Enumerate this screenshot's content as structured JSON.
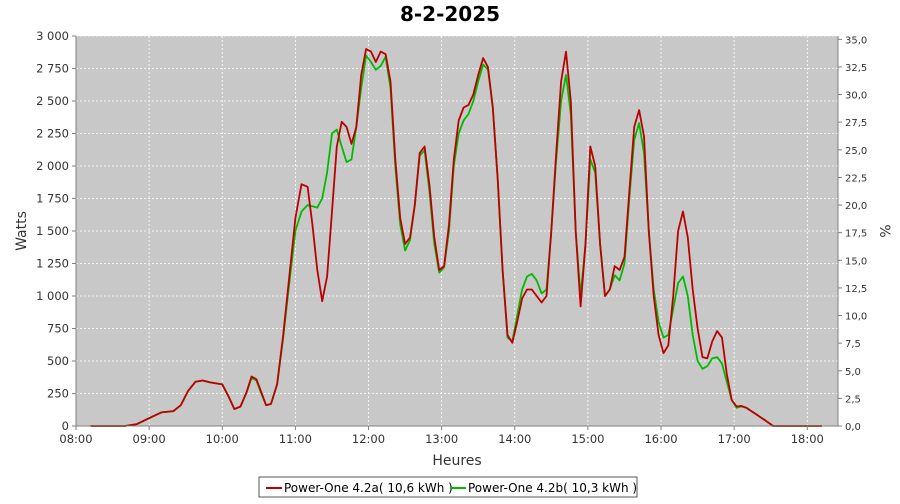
{
  "chart_data": {
    "type": "line",
    "title": "8-2-2025",
    "xlabel": "Heures",
    "ylabel": "Watts",
    "y2label": "%",
    "x_range_hours": [
      8.0,
      18.42
    ],
    "xticks": [
      "08:00",
      "09:00",
      "10:00",
      "11:00",
      "12:00",
      "13:00",
      "14:00",
      "15:00",
      "16:00",
      "17:00",
      "18:00"
    ],
    "ylim": [
      0,
      3000
    ],
    "yticks": [
      "0",
      "250",
      "500",
      "750",
      "1 000",
      "1 250",
      "1 500",
      "1 750",
      "2 000",
      "2 250",
      "2 500",
      "2 750",
      "3 000"
    ],
    "y2lim": [
      0,
      35.3
    ],
    "y2ticks": [
      "0,0",
      "2,5",
      "5,0",
      "7,5",
      "10,0",
      "12,5",
      "15,0",
      "17,5",
      "20,0",
      "22,5",
      "25,0",
      "27,5",
      "30,0",
      "32,5",
      "35,0"
    ],
    "grid": true,
    "legend_position": "bottom",
    "series": [
      {
        "name": "Power-One 4.2a( 10,6 kWh )",
        "color": "#bb0000",
        "points": [
          [
            "08:12",
            0
          ],
          [
            "08:40",
            0
          ],
          [
            "08:50",
            15
          ],
          [
            "09:00",
            60
          ],
          [
            "09:10",
            105
          ],
          [
            "09:20",
            115
          ],
          [
            "09:26",
            160
          ],
          [
            "09:32",
            270
          ],
          [
            "09:38",
            340
          ],
          [
            "09:44",
            350
          ],
          [
            "09:50",
            335
          ],
          [
            "10:00",
            320
          ],
          [
            "10:05",
            230
          ],
          [
            "10:10",
            130
          ],
          [
            "10:15",
            150
          ],
          [
            "10:20",
            260
          ],
          [
            "10:24",
            380
          ],
          [
            "10:28",
            360
          ],
          [
            "10:32",
            260
          ],
          [
            "10:36",
            160
          ],
          [
            "10:40",
            170
          ],
          [
            "10:45",
            320
          ],
          [
            "10:50",
            700
          ],
          [
            "10:55",
            1150
          ],
          [
            "11:00",
            1600
          ],
          [
            "11:05",
            1860
          ],
          [
            "11:10",
            1840
          ],
          [
            "11:14",
            1550
          ],
          [
            "11:18",
            1200
          ],
          [
            "11:22",
            960
          ],
          [
            "11:26",
            1150
          ],
          [
            "11:30",
            1650
          ],
          [
            "11:34",
            2150
          ],
          [
            "11:38",
            2340
          ],
          [
            "11:42",
            2300
          ],
          [
            "11:46",
            2170
          ],
          [
            "11:50",
            2300
          ],
          [
            "11:54",
            2700
          ],
          [
            "11:58",
            2900
          ],
          [
            "12:02",
            2880
          ],
          [
            "12:06",
            2800
          ],
          [
            "12:10",
            2880
          ],
          [
            "12:14",
            2860
          ],
          [
            "12:18",
            2650
          ],
          [
            "12:22",
            2050
          ],
          [
            "12:26",
            1600
          ],
          [
            "12:30",
            1400
          ],
          [
            "12:34",
            1450
          ],
          [
            "12:38",
            1700
          ],
          [
            "12:42",
            2100
          ],
          [
            "12:46",
            2150
          ],
          [
            "12:50",
            1850
          ],
          [
            "12:54",
            1450
          ],
          [
            "12:58",
            1200
          ],
          [
            "13:02",
            1230
          ],
          [
            "13:06",
            1550
          ],
          [
            "13:10",
            2050
          ],
          [
            "13:14",
            2350
          ],
          [
            "13:18",
            2450
          ],
          [
            "13:22",
            2470
          ],
          [
            "13:26",
            2550
          ],
          [
            "13:30",
            2700
          ],
          [
            "13:34",
            2830
          ],
          [
            "13:38",
            2760
          ],
          [
            "13:42",
            2450
          ],
          [
            "13:46",
            1900
          ],
          [
            "13:50",
            1200
          ],
          [
            "13:54",
            700
          ],
          [
            "13:58",
            640
          ],
          [
            "14:02",
            800
          ],
          [
            "14:06",
            980
          ],
          [
            "14:10",
            1050
          ],
          [
            "14:14",
            1050
          ],
          [
            "14:18",
            1000
          ],
          [
            "14:22",
            950
          ],
          [
            "14:26",
            1000
          ],
          [
            "14:30",
            1500
          ],
          [
            "14:34",
            2100
          ],
          [
            "14:38",
            2650
          ],
          [
            "14:42",
            2880
          ],
          [
            "14:46",
            2500
          ],
          [
            "14:50",
            1500
          ],
          [
            "14:54",
            920
          ],
          [
            "14:58",
            1400
          ],
          [
            "15:02",
            2150
          ],
          [
            "15:06",
            2000
          ],
          [
            "15:10",
            1400
          ],
          [
            "15:14",
            1000
          ],
          [
            "15:18",
            1050
          ],
          [
            "15:22",
            1230
          ],
          [
            "15:26",
            1200
          ],
          [
            "15:30",
            1300
          ],
          [
            "15:34",
            1800
          ],
          [
            "15:38",
            2300
          ],
          [
            "15:42",
            2430
          ],
          [
            "15:46",
            2230
          ],
          [
            "15:50",
            1500
          ],
          [
            "15:54",
            1000
          ],
          [
            "15:58",
            700
          ],
          [
            "16:02",
            560
          ],
          [
            "16:06",
            620
          ],
          [
            "16:10",
            1000
          ],
          [
            "16:14",
            1500
          ],
          [
            "16:18",
            1650
          ],
          [
            "16:22",
            1450
          ],
          [
            "16:26",
            1050
          ],
          [
            "16:30",
            750
          ],
          [
            "16:34",
            530
          ],
          [
            "16:38",
            520
          ],
          [
            "16:42",
            650
          ],
          [
            "16:46",
            730
          ],
          [
            "16:50",
            680
          ],
          [
            "16:54",
            400
          ],
          [
            "16:58",
            200
          ],
          [
            "17:02",
            150
          ],
          [
            "17:06",
            155
          ],
          [
            "17:10",
            140
          ],
          [
            "17:18",
            90
          ],
          [
            "17:26",
            40
          ],
          [
            "17:32",
            0
          ],
          [
            "18:12",
            0
          ]
        ]
      },
      {
        "name": "Power-One 4.2b( 10,3 kWh )",
        "color": "#00bb00",
        "points": [
          [
            "08:12",
            0
          ],
          [
            "08:40",
            0
          ],
          [
            "08:50",
            15
          ],
          [
            "09:00",
            60
          ],
          [
            "09:10",
            105
          ],
          [
            "09:20",
            115
          ],
          [
            "09:26",
            160
          ],
          [
            "09:32",
            270
          ],
          [
            "09:38",
            340
          ],
          [
            "09:44",
            350
          ],
          [
            "09:50",
            335
          ],
          [
            "10:00",
            320
          ],
          [
            "10:05",
            230
          ],
          [
            "10:10",
            130
          ],
          [
            "10:15",
            150
          ],
          [
            "10:20",
            260
          ],
          [
            "10:24",
            370
          ],
          [
            "10:28",
            350
          ],
          [
            "10:32",
            250
          ],
          [
            "10:36",
            160
          ],
          [
            "10:40",
            170
          ],
          [
            "10:45",
            320
          ],
          [
            "10:50",
            680
          ],
          [
            "10:55",
            1100
          ],
          [
            "11:00",
            1500
          ],
          [
            "11:05",
            1650
          ],
          [
            "11:10",
            1700
          ],
          [
            "11:14",
            1690
          ],
          [
            "11:18",
            1680
          ],
          [
            "11:22",
            1750
          ],
          [
            "11:26",
            1950
          ],
          [
            "11:30",
            2250
          ],
          [
            "11:34",
            2280
          ],
          [
            "11:38",
            2150
          ],
          [
            "11:42",
            2030
          ],
          [
            "11:46",
            2050
          ],
          [
            "11:50",
            2300
          ],
          [
            "11:54",
            2600
          ],
          [
            "11:58",
            2850
          ],
          [
            "12:02",
            2800
          ],
          [
            "12:06",
            2740
          ],
          [
            "12:10",
            2770
          ],
          [
            "12:14",
            2840
          ],
          [
            "12:18",
            2600
          ],
          [
            "12:22",
            2000
          ],
          [
            "12:26",
            1550
          ],
          [
            "12:30",
            1350
          ],
          [
            "12:34",
            1430
          ],
          [
            "12:38",
            1700
          ],
          [
            "12:42",
            2080
          ],
          [
            "12:46",
            2120
          ],
          [
            "12:50",
            1800
          ],
          [
            "12:54",
            1400
          ],
          [
            "12:58",
            1180
          ],
          [
            "13:02",
            1220
          ],
          [
            "13:06",
            1500
          ],
          [
            "13:10",
            2000
          ],
          [
            "13:14",
            2250
          ],
          [
            "13:18",
            2350
          ],
          [
            "13:22",
            2400
          ],
          [
            "13:26",
            2500
          ],
          [
            "13:30",
            2650
          ],
          [
            "13:34",
            2780
          ],
          [
            "13:38",
            2740
          ],
          [
            "13:42",
            2450
          ],
          [
            "13:46",
            1900
          ],
          [
            "13:50",
            1200
          ],
          [
            "13:54",
            680
          ],
          [
            "13:58",
            650
          ],
          [
            "14:02",
            850
          ],
          [
            "14:06",
            1050
          ],
          [
            "14:10",
            1150
          ],
          [
            "14:14",
            1170
          ],
          [
            "14:18",
            1120
          ],
          [
            "14:22",
            1020
          ],
          [
            "14:26",
            1050
          ],
          [
            "14:30",
            1500
          ],
          [
            "14:34",
            2050
          ],
          [
            "14:38",
            2500
          ],
          [
            "14:42",
            2700
          ],
          [
            "14:46",
            2400
          ],
          [
            "14:50",
            1500
          ],
          [
            "14:54",
            1000
          ],
          [
            "14:58",
            1400
          ],
          [
            "15:02",
            2050
          ],
          [
            "15:06",
            1950
          ],
          [
            "15:10",
            1400
          ],
          [
            "15:14",
            1000
          ],
          [
            "15:18",
            1050
          ],
          [
            "15:22",
            1160
          ],
          [
            "15:26",
            1120
          ],
          [
            "15:30",
            1250
          ],
          [
            "15:34",
            1750
          ],
          [
            "15:38",
            2200
          ],
          [
            "15:42",
            2330
          ],
          [
            "15:46",
            2100
          ],
          [
            "15:50",
            1500
          ],
          [
            "15:54",
            1050
          ],
          [
            "15:58",
            800
          ],
          [
            "16:02",
            680
          ],
          [
            "16:06",
            700
          ],
          [
            "16:10",
            900
          ],
          [
            "16:14",
            1100
          ],
          [
            "16:18",
            1150
          ],
          [
            "16:22",
            1000
          ],
          [
            "16:26",
            700
          ],
          [
            "16:30",
            500
          ],
          [
            "16:34",
            440
          ],
          [
            "16:38",
            460
          ],
          [
            "16:42",
            520
          ],
          [
            "16:46",
            530
          ],
          [
            "16:50",
            480
          ],
          [
            "16:54",
            340
          ],
          [
            "16:58",
            200
          ],
          [
            "17:02",
            140
          ],
          [
            "17:06",
            150
          ],
          [
            "17:10",
            140
          ],
          [
            "17:18",
            90
          ],
          [
            "17:26",
            40
          ],
          [
            "17:32",
            0
          ],
          [
            "18:12",
            0
          ]
        ]
      }
    ]
  }
}
